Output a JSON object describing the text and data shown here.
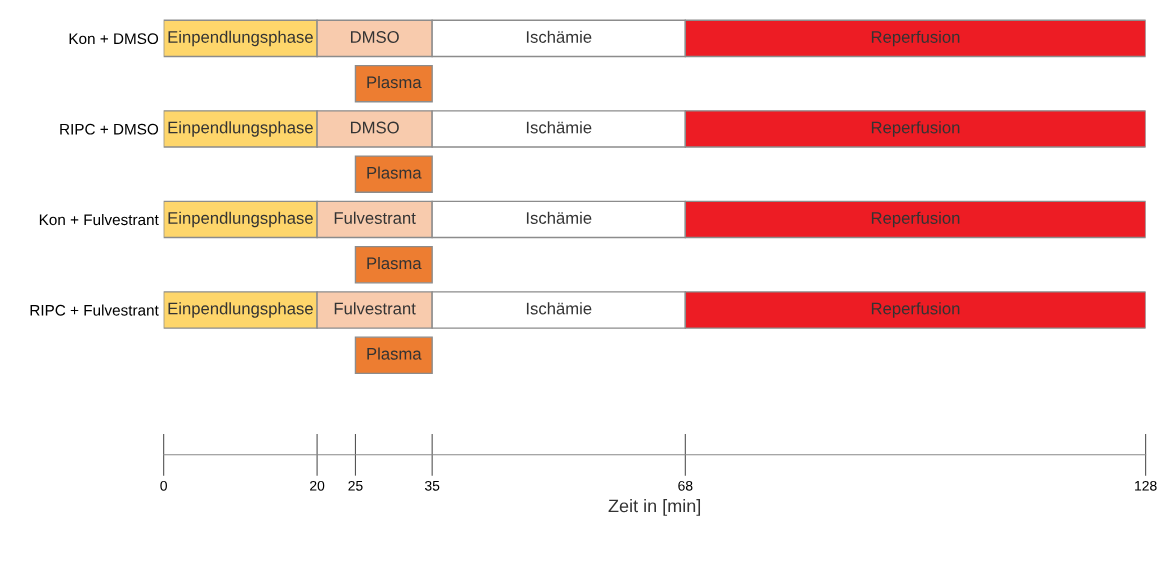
{
  "chart_data": {
    "type": "bar",
    "orientation": "horizontal",
    "xlabel": "Zeit in [min]",
    "categories": [
      "Kon + DMSO",
      null,
      "RIPC + DMSO",
      null,
      "Kon + Fulvestrant",
      null,
      "RIPC + Fulvestrant",
      null
    ],
    "xlim": [
      0,
      128
    ],
    "xticks": [
      0,
      20,
      25,
      35,
      68,
      128
    ],
    "grid": false,
    "legend": false,
    "series": [
      {
        "color": "#fed66b",
        "values": [
          20,
          null,
          20,
          null,
          20,
          null,
          20,
          null
        ],
        "base": [
          0,
          null,
          0,
          null,
          0,
          null,
          0,
          null
        ],
        "value_labels": [
          "Einpendlungsphase",
          null,
          "Einpendlungsphase",
          null,
          "Einpendlungsphase",
          null,
          "Einpendlungsphase",
          null
        ]
      },
      {
        "color": "#f8cbad",
        "values": [
          15,
          null,
          15,
          null,
          15,
          null,
          15,
          null
        ],
        "base": [
          20,
          null,
          20,
          null,
          20,
          null,
          20,
          null
        ],
        "value_labels": [
          "DMSO",
          null,
          "DMSO",
          null,
          "Fulvestrant",
          null,
          "Fulvestrant",
          null
        ]
      },
      {
        "color": "#ed7d31",
        "values": [
          null,
          10,
          null,
          10,
          null,
          10,
          null,
          10
        ],
        "base": [
          null,
          25,
          null,
          25,
          null,
          25,
          null,
          25
        ],
        "value_labels": [
          null,
          "Plasma",
          null,
          "Plasma",
          null,
          "Plasma",
          null,
          "Plasma"
        ]
      },
      {
        "color": "#ffffff",
        "values": [
          33,
          null,
          33,
          null,
          33,
          null,
          33,
          null
        ],
        "base": [
          35,
          null,
          35,
          null,
          35,
          null,
          35,
          null
        ],
        "value_labels": [
          "Ischämie",
          null,
          "Ischämie",
          null,
          "Ischämie",
          null,
          "Ischämie",
          null
        ]
      },
      {
        "color": "#ed1c24",
        "values": [
          60,
          null,
          60,
          null,
          60,
          null,
          60,
          null
        ],
        "base": [
          68,
          null,
          68,
          null,
          68,
          null,
          68,
          null
        ],
        "value_labels": [
          "Reperfusion",
          null,
          "Reperfusion",
          null,
          "Reperfusion",
          null,
          "Reperfusion",
          null
        ]
      }
    ]
  }
}
